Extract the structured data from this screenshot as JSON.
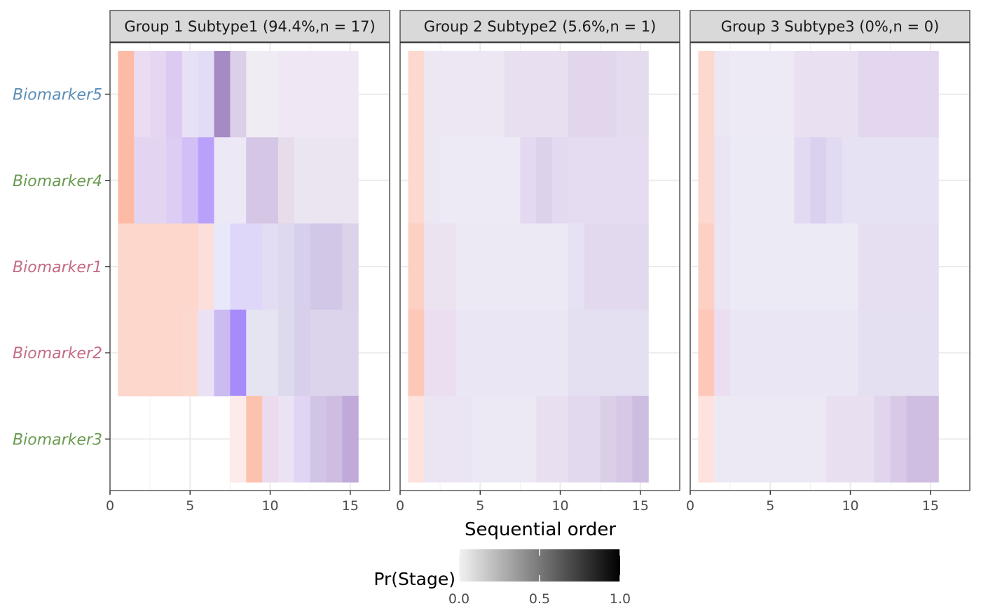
{
  "chart_data": {
    "type": "heatmap",
    "xlabel": "Sequential order",
    "x_ticks": [
      0,
      5,
      10,
      15
    ],
    "xlim": [
      0,
      17.5
    ],
    "rows": [
      "Biomarker5",
      "Biomarker4",
      "Biomarker1",
      "Biomarker2",
      "Biomarker3"
    ],
    "row_colors": [
      "#5b8db8",
      "#6a9a4f",
      "#c46c84",
      "#c46c84",
      "#6a9a4f"
    ],
    "panels": [
      {
        "title": "Group 1 Subtype1 (94.4%,n = 17)",
        "rows": [
          {
            "name": "Biomarker5",
            "cells": [
              {
                "c": "#fdbba6",
                "x0": 0.5,
                "x1": 1.5
              },
              {
                "c": "#ecdcf1",
                "x0": 1.5,
                "x1": 2.5
              },
              {
                "c": "#e5d6f1",
                "x0": 2.5,
                "x1": 3.5
              },
              {
                "c": "#dccaf3",
                "x0": 3.5,
                "x1": 4.5
              },
              {
                "c": "#e7e1f5",
                "x0": 4.5,
                "x1": 5.5
              },
              {
                "c": "#e3dcf6",
                "x0": 5.5,
                "x1": 6.5
              },
              {
                "c": "#a68ac4",
                "x0": 6.5,
                "x1": 7.5
              },
              {
                "c": "#dcd0e8",
                "x0": 7.5,
                "x1": 8.5
              },
              {
                "c": "#f0ecf4",
                "x0": 8.5,
                "x1": 10.5
              },
              {
                "c": "#efe8f4",
                "x0": 10.5,
                "x1": 15.5
              }
            ]
          },
          {
            "name": "Biomarker4",
            "cells": [
              {
                "c": "#fdbba6",
                "x0": 0.5,
                "x1": 1.5
              },
              {
                "c": "#e3d5f1",
                "x0": 1.5,
                "x1": 3.5
              },
              {
                "c": "#ddccf3",
                "x0": 3.5,
                "x1": 4.5
              },
              {
                "c": "#d2bff5",
                "x0": 4.5,
                "x1": 5.5
              },
              {
                "c": "#b9a1fb",
                "x0": 5.5,
                "x1": 6.5
              },
              {
                "c": "#ece8f6",
                "x0": 6.5,
                "x1": 8.5
              },
              {
                "c": "#d4c6e4",
                "x0": 8.5,
                "x1": 10.5
              },
              {
                "c": "#e7dce9",
                "x0": 10.5,
                "x1": 11.5
              },
              {
                "c": "#ebe5f2",
                "x0": 11.5,
                "x1": 15.5
              }
            ]
          },
          {
            "name": "Biomarker1",
            "cells": [
              {
                "c": "#fdd6cc",
                "x0": 0.5,
                "x1": 5.5
              },
              {
                "c": "#fbdfda",
                "x0": 5.5,
                "x1": 6.5
              },
              {
                "c": "#e8e8fb",
                "x0": 6.5,
                "x1": 7.5
              },
              {
                "c": "#dfd7fa",
                "x0": 7.5,
                "x1": 9.5
              },
              {
                "c": "#e3dcf3",
                "x0": 9.5,
                "x1": 10.5
              },
              {
                "c": "#dfd9ef",
                "x0": 10.5,
                "x1": 11.5
              },
              {
                "c": "#d8cfec",
                "x0": 11.5,
                "x1": 12.5
              },
              {
                "c": "#d3c7e8",
                "x0": 12.5,
                "x1": 14.5
              },
              {
                "c": "#dcd2e9",
                "x0": 14.5,
                "x1": 15.5
              }
            ]
          },
          {
            "name": "Biomarker2",
            "cells": [
              {
                "c": "#fdd6cc",
                "x0": 0.5,
                "x1": 4.5
              },
              {
                "c": "#fcd9cf",
                "x0": 4.5,
                "x1": 5.5
              },
              {
                "c": "#eae2f4",
                "x0": 5.5,
                "x1": 6.5
              },
              {
                "c": "#ccbaf2",
                "x0": 6.5,
                "x1": 7.5
              },
              {
                "c": "#a68bfb",
                "x0": 7.5,
                "x1": 8.5
              },
              {
                "c": "#e6e4f3",
                "x0": 8.5,
                "x1": 10.5
              },
              {
                "c": "#dedaee",
                "x0": 10.5,
                "x1": 11.5
              },
              {
                "c": "#d8d0ea",
                "x0": 11.5,
                "x1": 12.5
              },
              {
                "c": "#dcd4eb",
                "x0": 12.5,
                "x1": 15.5
              }
            ]
          },
          {
            "name": "Biomarker3",
            "cells": [
              {
                "c": "#fdeaea",
                "x0": 7.5,
                "x1": 8.5
              },
              {
                "c": "#fdc2ae",
                "x0": 8.5,
                "x1": 9.5
              },
              {
                "c": "#ecdaee",
                "x0": 9.5,
                "x1": 10.5
              },
              {
                "c": "#ebe2f3",
                "x0": 10.5,
                "x1": 11.5
              },
              {
                "c": "#e1d5f3",
                "x0": 11.5,
                "x1": 12.5
              },
              {
                "c": "#d2c4e5",
                "x0": 12.5,
                "x1": 13.5
              },
              {
                "c": "#cebde1",
                "x0": 13.5,
                "x1": 14.5
              },
              {
                "c": "#c1a9d9",
                "x0": 14.5,
                "x1": 15.5
              }
            ]
          }
        ]
      },
      {
        "title": "Group 2 Subtype2 (5.6%,n = 1)",
        "rows": [
          {
            "name": "Biomarker5",
            "cells": [
              {
                "c": "#fdd8ce",
                "x0": 0.5,
                "x1": 1.5
              },
              {
                "c": "#ede6f3",
                "x0": 1.5,
                "x1": 6.5
              },
              {
                "c": "#e8e0f0",
                "x0": 6.5,
                "x1": 10.5
              },
              {
                "c": "#e1d6ec",
                "x0": 10.5,
                "x1": 13.5
              },
              {
                "c": "#e4dbee",
                "x0": 13.5,
                "x1": 15.5
              }
            ]
          },
          {
            "name": "Biomarker4",
            "cells": [
              {
                "c": "#fdd8ce",
                "x0": 0.5,
                "x1": 1.5
              },
              {
                "c": "#ede6f3",
                "x0": 1.5,
                "x1": 2.5
              },
              {
                "c": "#eeeaf5",
                "x0": 2.5,
                "x1": 7.5
              },
              {
                "c": "#e3d9f0",
                "x0": 7.5,
                "x1": 8.5
              },
              {
                "c": "#ddd1ec",
                "x0": 8.5,
                "x1": 9.5
              },
              {
                "c": "#e3d9f0",
                "x0": 9.5,
                "x1": 10.5
              },
              {
                "c": "#e6dcf1",
                "x0": 10.5,
                "x1": 15.5
              }
            ]
          },
          {
            "name": "Biomarker1",
            "cells": [
              {
                "c": "#fdd0c4",
                "x0": 0.5,
                "x1": 1.5
              },
              {
                "c": "#ece3f1",
                "x0": 1.5,
                "x1": 3.5
              },
              {
                "c": "#ece9f5",
                "x0": 3.5,
                "x1": 10.5
              },
              {
                "c": "#e7e2f3",
                "x0": 10.5,
                "x1": 11.5
              },
              {
                "c": "#e2d9ee",
                "x0": 11.5,
                "x1": 15.5
              }
            ]
          },
          {
            "name": "Biomarker2",
            "cells": [
              {
                "c": "#fdc8b8",
                "x0": 0.5,
                "x1": 1.5
              },
              {
                "c": "#ebdef1",
                "x0": 1.5,
                "x1": 3.5
              },
              {
                "c": "#eae6f4",
                "x0": 3.5,
                "x1": 10.5
              },
              {
                "c": "#e4dff1",
                "x0": 10.5,
                "x1": 15.5
              }
            ]
          },
          {
            "name": "Biomarker3",
            "cells": [
              {
                "c": "#fde2dd",
                "x0": 0.5,
                "x1": 1.5
              },
              {
                "c": "#ebe4f3",
                "x0": 1.5,
                "x1": 4.5
              },
              {
                "c": "#ede9f4",
                "x0": 4.5,
                "x1": 8.5
              },
              {
                "c": "#e8e0f1",
                "x0": 8.5,
                "x1": 10.5
              },
              {
                "c": "#e3d9ee",
                "x0": 10.5,
                "x1": 12.5
              },
              {
                "c": "#dbcfe8",
                "x0": 12.5,
                "x1": 13.5
              },
              {
                "c": "#d6c8e6",
                "x0": 13.5,
                "x1": 14.5
              },
              {
                "c": "#cdbde1",
                "x0": 14.5,
                "x1": 15.5
              }
            ]
          }
        ]
      },
      {
        "title": "Group 3 Subtype3 (0%,n = 0)",
        "rows": [
          {
            "name": "Biomarker5",
            "cells": [
              {
                "c": "#fdd8ce",
                "x0": 0.5,
                "x1": 1.5
              },
              {
                "c": "#ede6f3",
                "x0": 1.5,
                "x1": 2.5
              },
              {
                "c": "#eeeaf5",
                "x0": 2.5,
                "x1": 6.5
              },
              {
                "c": "#e9e1f1",
                "x0": 6.5,
                "x1": 10.5
              },
              {
                "c": "#e2d7ee",
                "x0": 10.5,
                "x1": 15.5
              }
            ]
          },
          {
            "name": "Biomarker4",
            "cells": [
              {
                "c": "#fdd8ce",
                "x0": 0.5,
                "x1": 1.5
              },
              {
                "c": "#ebe4f2",
                "x0": 1.5,
                "x1": 2.5
              },
              {
                "c": "#eceaf5",
                "x0": 2.5,
                "x1": 6.5
              },
              {
                "c": "#e2daf2",
                "x0": 6.5,
                "x1": 7.5
              },
              {
                "c": "#dcd0ef",
                "x0": 7.5,
                "x1": 8.5
              },
              {
                "c": "#e2daf2",
                "x0": 8.5,
                "x1": 9.5
              },
              {
                "c": "#e7e2f3",
                "x0": 9.5,
                "x1": 15.5
              }
            ]
          },
          {
            "name": "Biomarker1",
            "cells": [
              {
                "c": "#fdd0c4",
                "x0": 0.5,
                "x1": 1.5
              },
              {
                "c": "#ebe4f2",
                "x0": 1.5,
                "x1": 2.5
              },
              {
                "c": "#eceaf5",
                "x0": 2.5,
                "x1": 10.5
              },
              {
                "c": "#e6dff1",
                "x0": 10.5,
                "x1": 15.5
              }
            ]
          },
          {
            "name": "Biomarker2",
            "cells": [
              {
                "c": "#fdc8b8",
                "x0": 0.5,
                "x1": 1.5
              },
              {
                "c": "#ebdef1",
                "x0": 1.5,
                "x1": 2.5
              },
              {
                "c": "#eae6f4",
                "x0": 2.5,
                "x1": 10.5
              },
              {
                "c": "#e4dff1",
                "x0": 10.5,
                "x1": 15.5
              }
            ]
          },
          {
            "name": "Biomarker3",
            "cells": [
              {
                "c": "#fde2dd",
                "x0": 0.5,
                "x1": 1.5
              },
              {
                "c": "#ede9f4",
                "x0": 1.5,
                "x1": 8.5
              },
              {
                "c": "#e8e0f1",
                "x0": 8.5,
                "x1": 11.5
              },
              {
                "c": "#e0d5ec",
                "x0": 11.5,
                "x1": 12.5
              },
              {
                "c": "#d8cae7",
                "x0": 12.5,
                "x1": 13.5
              },
              {
                "c": "#cfbde2",
                "x0": 13.5,
                "x1": 15.5
              }
            ]
          }
        ]
      }
    ],
    "legend": {
      "title": "Pr(Stage)",
      "ticks": [
        0.0,
        0.5,
        1.0
      ],
      "tick_labels": [
        "0.0",
        "0.5",
        "1.0"
      ],
      "low_color": "#f2f2f2",
      "high_color": "#000000",
      "placement": "bottom"
    },
    "grid": true
  }
}
